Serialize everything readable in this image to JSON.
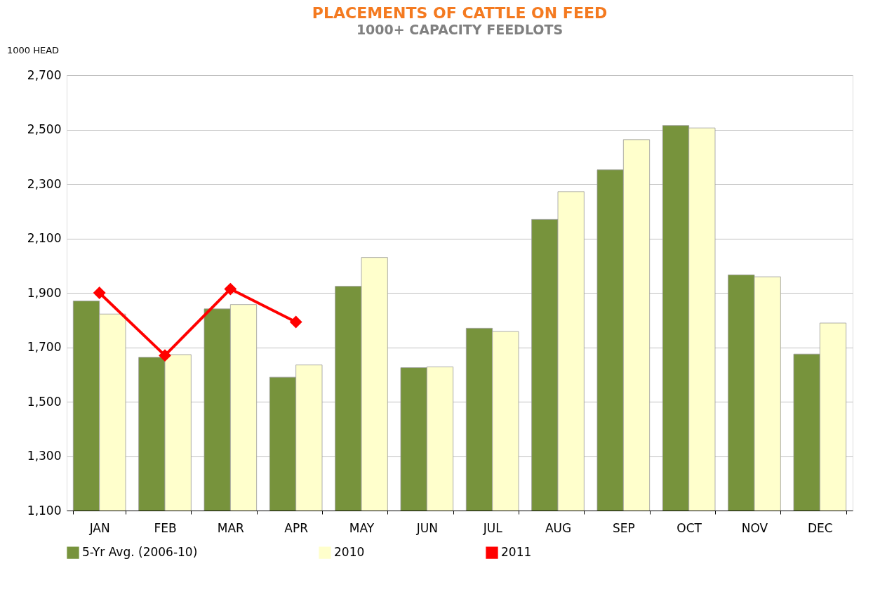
{
  "chart_data": {
    "type": "bar",
    "title": "PLACEMENTS OF CATTLE ON FEED",
    "subtitle": "1000+ CAPACITY FEEDLOTS",
    "ylabel": "1000 HEAD",
    "categories": [
      "JAN",
      "FEB",
      "MAR",
      "APR",
      "MAY",
      "JUN",
      "JUL",
      "AUG",
      "SEP",
      "OCT",
      "NOV",
      "DEC"
    ],
    "series": [
      {
        "name": "5-Yr Avg. (2006-10)",
        "color": "#77933c",
        "values": [
          1870,
          1663,
          1841,
          1590,
          1924,
          1625,
          1770,
          2170,
          2352,
          2515,
          1966,
          1675
        ]
      },
      {
        "name": "2010",
        "color": "#ffffcc",
        "values": [
          1822,
          1673,
          1857,
          1635,
          2030,
          1628,
          1758,
          2272,
          2463,
          2506,
          1959,
          1789
        ]
      },
      {
        "name": "2011",
        "type": "line",
        "color": "#ff0000",
        "marker": "diamond",
        "values": [
          1900,
          1670,
          1914,
          1793,
          null,
          null,
          null,
          null,
          null,
          null,
          null,
          null
        ]
      }
    ],
    "ylim": [
      1100,
      2700
    ],
    "yticks": [
      {
        "value": 1100,
        "label": "1,100"
      },
      {
        "value": 1300,
        "label": "1,300"
      },
      {
        "value": 1500,
        "label": "1,500"
      },
      {
        "value": 1700,
        "label": "1,700"
      },
      {
        "value": 1900,
        "label": "1,900"
      },
      {
        "value": 2100,
        "label": "2,100"
      },
      {
        "value": 2300,
        "label": "2,300"
      },
      {
        "value": 2500,
        "label": "2,500"
      },
      {
        "value": 2700,
        "label": "2,700"
      }
    ],
    "grid": "y",
    "legend": "bottom"
  }
}
